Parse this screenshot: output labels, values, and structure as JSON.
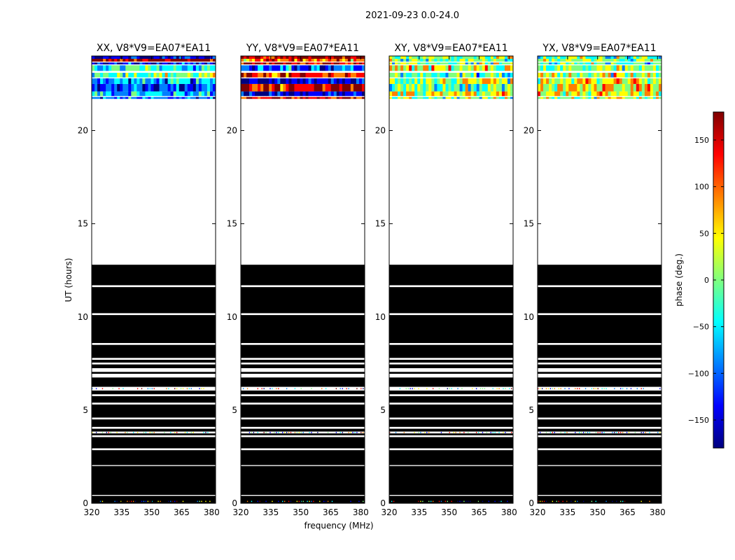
{
  "figure": {
    "suptitle": "2021-09-23 0.0-24.0",
    "xlabel": "frequency (MHz)",
    "ylabel": "UT (hours)"
  },
  "chart_data": {
    "type": "heatmap",
    "title": "2021-09-23 0.0-24.0",
    "xlabel": "frequency (MHz)",
    "ylabel": "UT (hours)",
    "xlim": [
      320,
      382
    ],
    "ylim": [
      0,
      24
    ],
    "xticks": [
      320,
      335,
      350,
      365,
      380
    ],
    "yticks": [
      0,
      5,
      10,
      15,
      20
    ],
    "panels": [
      {
        "title": "XX, V8*V9=EA07*EA11",
        "pol": "XX",
        "masked_rows_ut": [
          [
            0.0,
            0.4
          ],
          [
            0.45,
            2.0
          ],
          [
            2.05,
            2.85
          ],
          [
            2.95,
            3.55
          ],
          [
            3.65,
            3.75
          ],
          [
            3.85,
            4.0
          ],
          [
            4.1,
            4.5
          ],
          [
            4.6,
            5.3
          ],
          [
            5.4,
            5.75
          ],
          [
            5.85,
            6.05
          ],
          [
            6.25,
            6.75
          ],
          [
            6.95,
            7.05
          ],
          [
            7.25,
            7.45
          ],
          [
            7.55,
            7.7
          ],
          [
            7.8,
            8.5
          ],
          [
            8.6,
            10.1
          ],
          [
            10.2,
            11.6
          ],
          [
            11.7,
            12.8
          ]
        ],
        "data_rows_ut": [
          [
            21.7,
            21.8,
            -100
          ],
          [
            21.85,
            22.1,
            -60
          ],
          [
            22.1,
            22.5,
            -120
          ],
          [
            22.5,
            22.8,
            -80
          ],
          [
            22.85,
            23.1,
            0
          ],
          [
            23.2,
            23.5,
            -40
          ],
          [
            23.55,
            23.65,
            -150
          ],
          [
            23.7,
            23.85,
            170
          ],
          [
            23.85,
            24.0,
            -130
          ]
        ]
      },
      {
        "title": "YY, V8*V9=EA07*EA11",
        "pol": "YY",
        "masked_rows_ut": [
          [
            0.0,
            0.4
          ],
          [
            0.45,
            2.0
          ],
          [
            2.05,
            2.85
          ],
          [
            2.95,
            3.55
          ],
          [
            3.65,
            3.75
          ],
          [
            3.85,
            4.0
          ],
          [
            4.1,
            4.5
          ],
          [
            4.6,
            5.3
          ],
          [
            5.4,
            5.75
          ],
          [
            5.85,
            6.05
          ],
          [
            6.25,
            6.75
          ],
          [
            6.95,
            7.05
          ],
          [
            7.25,
            7.45
          ],
          [
            7.55,
            7.7
          ],
          [
            7.8,
            8.5
          ],
          [
            8.6,
            10.1
          ],
          [
            10.2,
            11.6
          ],
          [
            11.7,
            12.8
          ]
        ],
        "data_rows_ut": [
          [
            21.7,
            21.8,
            140
          ],
          [
            21.85,
            22.1,
            -150
          ],
          [
            22.1,
            22.5,
            160
          ],
          [
            22.5,
            22.8,
            -160
          ],
          [
            22.85,
            23.1,
            120
          ],
          [
            23.2,
            23.5,
            -100
          ],
          [
            23.55,
            23.65,
            150
          ],
          [
            23.7,
            23.85,
            100
          ],
          [
            23.85,
            24.0,
            170
          ]
        ]
      },
      {
        "title": "XY, V8*V9=EA07*EA11",
        "pol": "XY",
        "masked_rows_ut": [
          [
            0.0,
            0.4
          ],
          [
            0.45,
            2.0
          ],
          [
            2.05,
            2.85
          ],
          [
            2.95,
            3.55
          ],
          [
            3.65,
            3.75
          ],
          [
            3.85,
            4.0
          ],
          [
            4.1,
            4.5
          ],
          [
            4.6,
            5.3
          ],
          [
            5.4,
            5.75
          ],
          [
            5.85,
            6.05
          ],
          [
            6.25,
            6.75
          ],
          [
            6.95,
            7.05
          ],
          [
            7.25,
            7.45
          ],
          [
            7.55,
            7.7
          ],
          [
            7.8,
            8.5
          ],
          [
            8.6,
            10.1
          ],
          [
            10.2,
            11.6
          ],
          [
            11.7,
            12.8
          ]
        ],
        "data_rows_ut": [
          [
            21.7,
            21.8,
            0
          ],
          [
            21.85,
            22.1,
            40
          ],
          [
            22.1,
            22.5,
            -20
          ],
          [
            22.5,
            22.8,
            20
          ],
          [
            22.85,
            23.1,
            -30
          ],
          [
            23.2,
            23.5,
            30
          ],
          [
            23.55,
            23.65,
            0
          ],
          [
            23.7,
            23.85,
            -10
          ],
          [
            23.85,
            24.0,
            10
          ]
        ]
      },
      {
        "title": "YX, V8*V9=EA07*EA11",
        "pol": "YX",
        "masked_rows_ut": [
          [
            0.0,
            0.4
          ],
          [
            0.45,
            2.0
          ],
          [
            2.05,
            2.85
          ],
          [
            2.95,
            3.55
          ],
          [
            3.65,
            3.75
          ],
          [
            3.85,
            4.0
          ],
          [
            4.1,
            4.5
          ],
          [
            4.6,
            5.3
          ],
          [
            5.4,
            5.75
          ],
          [
            5.85,
            6.05
          ],
          [
            6.25,
            6.75
          ],
          [
            6.95,
            7.05
          ],
          [
            7.25,
            7.45
          ],
          [
            7.55,
            7.7
          ],
          [
            7.8,
            8.5
          ],
          [
            8.6,
            10.1
          ],
          [
            10.2,
            11.6
          ],
          [
            11.7,
            12.8
          ]
        ],
        "data_rows_ut": [
          [
            21.7,
            21.8,
            10
          ],
          [
            21.85,
            22.1,
            30
          ],
          [
            22.1,
            22.5,
            50
          ],
          [
            22.5,
            22.8,
            40
          ],
          [
            22.85,
            23.1,
            20
          ],
          [
            23.2,
            23.5,
            0
          ],
          [
            23.55,
            23.65,
            -20
          ],
          [
            23.7,
            23.85,
            10
          ],
          [
            23.85,
            24.0,
            -10
          ]
        ]
      }
    ],
    "colorbar": {
      "label": "phase (deg.)",
      "range": [
        -180,
        180
      ],
      "ticks": [
        -150,
        -100,
        -50,
        0,
        50,
        100,
        150
      ],
      "tick_labels": [
        "−150",
        "−100",
        "−50",
        "0",
        "50",
        "100",
        "150"
      ],
      "colormap": [
        "#00007f",
        "#0000ff",
        "#007fff",
        "#00ffff",
        "#7fff7f",
        "#ffff00",
        "#ff7f00",
        "#ff0000",
        "#7f0000"
      ]
    }
  }
}
